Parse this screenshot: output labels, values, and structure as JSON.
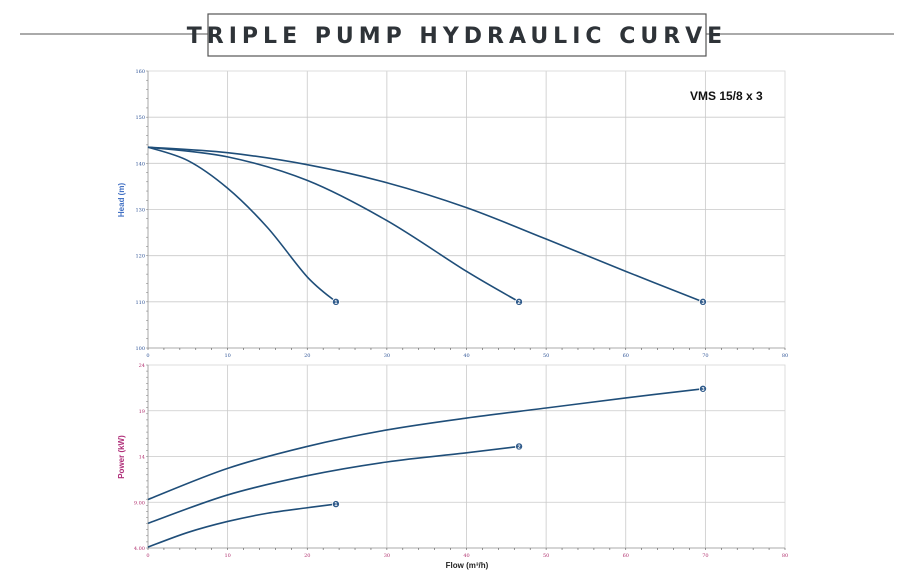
{
  "title": "TRIPLE PUMP HYDRAULIC CURVE",
  "model": "VMS 15/8 x 3",
  "chart_data": [
    {
      "type": "line",
      "name": "head",
      "ylabel": "Head (m)",
      "xlabel": "",
      "xlim": [
        0,
        80
      ],
      "ylim": [
        100,
        160
      ],
      "x_ticks": [
        0,
        10,
        20,
        30,
        40,
        50,
        60,
        70,
        80
      ],
      "y_ticks": [
        100,
        110,
        120,
        130,
        140,
        150,
        160
      ],
      "grid": true,
      "series": [
        {
          "name": "1",
          "x": [
            0,
            5,
            10,
            15,
            20,
            23.6
          ],
          "y": [
            143.5,
            140.6,
            134.6,
            126.1,
            115.4,
            110
          ]
        },
        {
          "name": "2",
          "x": [
            0,
            10,
            20,
            30,
            40,
            46.6
          ],
          "y": [
            143.5,
            141.4,
            136.3,
            127.6,
            116.6,
            110
          ]
        },
        {
          "name": "3",
          "x": [
            0,
            10,
            20,
            30,
            40,
            50,
            60,
            69.7
          ],
          "y": [
            143.5,
            142.3,
            139.7,
            135.8,
            130.4,
            123.6,
            116.6,
            110
          ]
        }
      ]
    },
    {
      "type": "line",
      "name": "power",
      "ylabel": "Power (kW)",
      "xlabel": "Flow (m³/h)",
      "xlim": [
        0,
        80
      ],
      "ylim": [
        4,
        24
      ],
      "x_ticks": [
        0,
        10,
        20,
        30,
        40,
        50,
        60,
        70,
        80
      ],
      "y_ticks": [
        4,
        9,
        14,
        19,
        24
      ],
      "y_tick_labels": [
        "4.00",
        "9.00",
        "14",
        "19",
        "24"
      ],
      "grid": true,
      "series": [
        {
          "name": "1",
          "x": [
            0,
            5,
            10,
            15,
            20,
            23.6
          ],
          "y": [
            4.1,
            5.7,
            6.9,
            7.8,
            8.4,
            8.8
          ]
        },
        {
          "name": "2",
          "x": [
            0,
            10,
            20,
            30,
            40,
            46.6
          ],
          "y": [
            6.7,
            9.8,
            11.9,
            13.4,
            14.4,
            15.1
          ]
        },
        {
          "name": "3",
          "x": [
            0,
            10,
            20,
            30,
            40,
            50,
            60,
            69.7
          ],
          "y": [
            9.3,
            12.7,
            15.1,
            16.9,
            18.2,
            19.3,
            20.4,
            21.4
          ]
        }
      ]
    }
  ]
}
